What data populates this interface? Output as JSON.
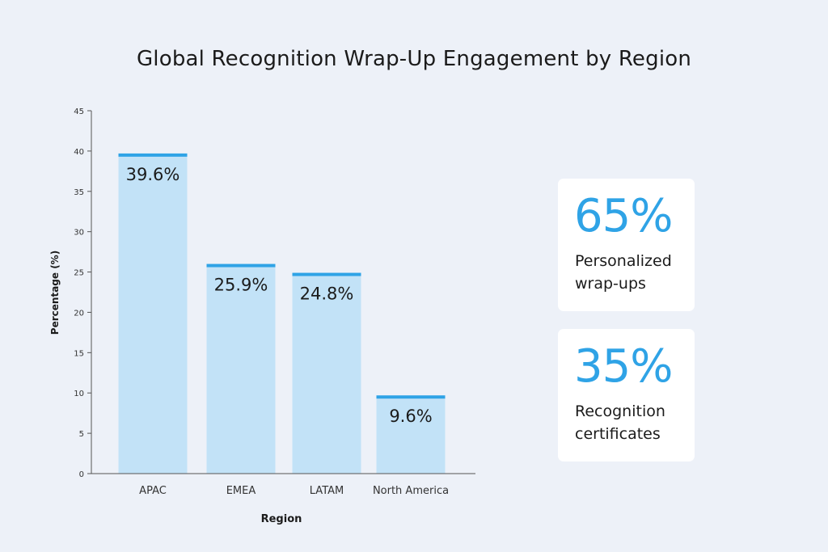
{
  "chart_data": {
    "type": "bar",
    "title": "Global Recognition Wrap-Up Engagement by Region",
    "xlabel": "Region",
    "ylabel": "Percentage (%)",
    "categories": [
      "APAC",
      "EMEA",
      "LATAM",
      "North America"
    ],
    "values": [
      39.6,
      25.9,
      24.8,
      9.6
    ],
    "data_labels": [
      "39.6%",
      "25.9%",
      "24.8%",
      "9.6%"
    ],
    "ylim": [
      0,
      45
    ],
    "yticks": [
      0,
      5,
      10,
      15,
      20,
      25,
      30,
      35,
      40,
      45
    ],
    "grid": false,
    "colors": {
      "bar_fill": "#c2e2f7",
      "bar_cap": "#2fa3e6",
      "axis": "#555555",
      "text": "#1b1b1b"
    }
  },
  "stats": [
    {
      "value": "65%",
      "label_line1": "Personalized",
      "label_line2": "wrap-ups"
    },
    {
      "value": "35%",
      "label_line1": "Recognition",
      "label_line2": "certificates"
    }
  ],
  "colors": {
    "background": "#edf1f8",
    "accent": "#2fa3e6",
    "card": "#ffffff"
  }
}
